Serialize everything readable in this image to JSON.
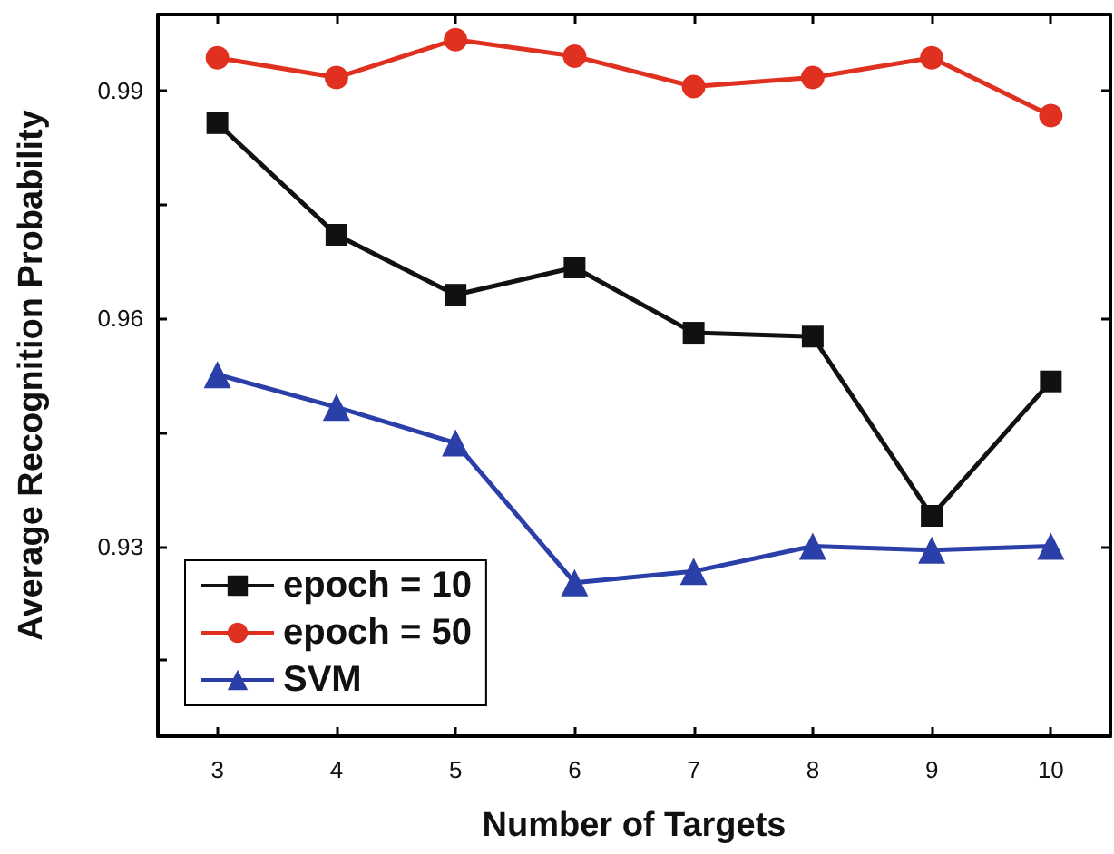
{
  "chart_data": {
    "type": "line",
    "xlabel": "Number of Targets",
    "ylabel": "Average Recognition Probability",
    "x": [
      3,
      4,
      5,
      6,
      7,
      8,
      9,
      10
    ],
    "series": [
      {
        "name": "epoch = 10",
        "color": "#111111",
        "marker": "square",
        "values": [
          0.9857,
          0.971,
          0.9631,
          0.9667,
          0.9581,
          0.9576,
          0.934,
          0.9517
        ]
      },
      {
        "name": "epoch = 50",
        "color": "#e03020",
        "marker": "circle",
        "values": [
          0.9943,
          0.9917,
          0.9967,
          0.9945,
          0.9905,
          0.9917,
          0.9943,
          0.9867
        ]
      },
      {
        "name": "SVM",
        "color": "#2a3fa8",
        "marker": "triangle",
        "values": [
          0.9526,
          0.9483,
          0.9436,
          0.9252,
          0.9267,
          0.93,
          0.9295,
          0.93
        ]
      }
    ],
    "xlim": [
      2.5,
      10.5
    ],
    "xticks": [
      3,
      4,
      5,
      6,
      7,
      8,
      9,
      10
    ],
    "ylim": [
      0.905,
      1.0
    ],
    "yticks": [
      {
        "value": 0.915,
        "label": null
      },
      0.93,
      {
        "value": 0.945,
        "label": null
      },
      0.96,
      {
        "value": 0.975,
        "label": null
      },
      0.99
    ],
    "grid": false,
    "legend": "bottom left",
    "line_style": "solid"
  }
}
